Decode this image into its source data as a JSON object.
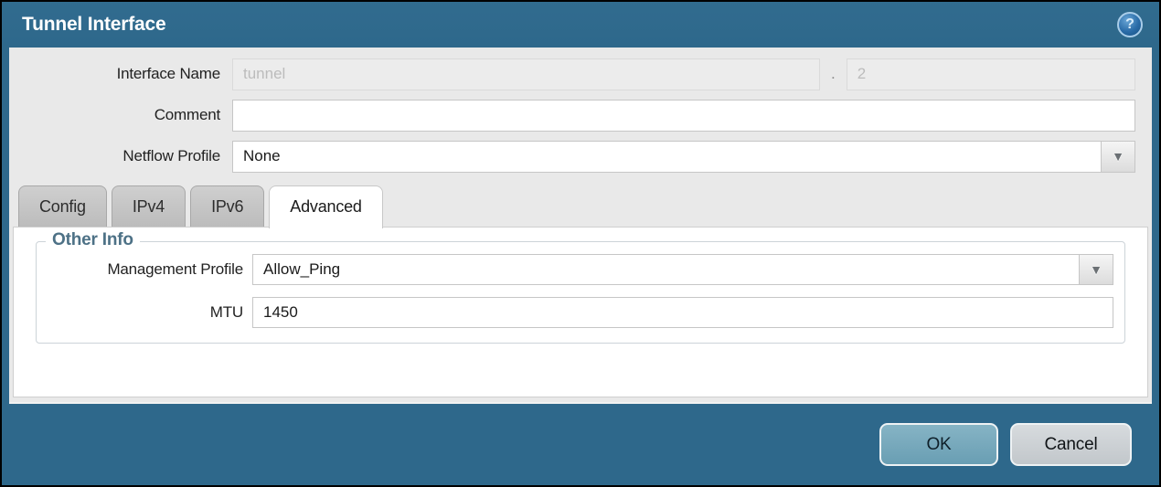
{
  "dialog": {
    "title": "Tunnel Interface"
  },
  "icons": {
    "help": "?",
    "dropdown": "▼"
  },
  "form": {
    "interface_name": {
      "label": "Interface Name",
      "value": "tunnel",
      "separator": ".",
      "subinterface_value": "2"
    },
    "comment": {
      "label": "Comment",
      "value": ""
    },
    "netflow_profile": {
      "label": "Netflow Profile",
      "value": "None"
    }
  },
  "tabs": [
    {
      "label": "Config",
      "active": false
    },
    {
      "label": "IPv4",
      "active": false
    },
    {
      "label": "IPv6",
      "active": false
    },
    {
      "label": "Advanced",
      "active": true
    }
  ],
  "advanced_tab": {
    "other_info": {
      "legend": "Other Info",
      "management_profile": {
        "label": "Management Profile",
        "value": "Allow_Ping"
      },
      "mtu": {
        "label": "MTU",
        "value": "1450"
      }
    }
  },
  "footer": {
    "ok": "OK",
    "cancel": "Cancel"
  },
  "colors": {
    "frame_teal": "#2e688b",
    "body_gray": "#e9e9e9",
    "ok_button": "#74a8bc",
    "legend_blue": "#4d7186",
    "help_icon_blue": "#2a6ca8"
  }
}
